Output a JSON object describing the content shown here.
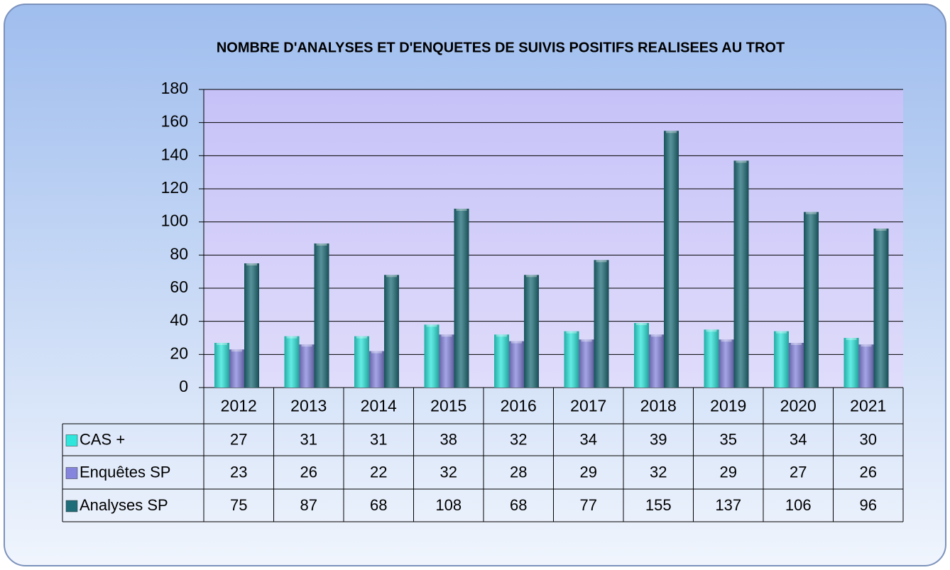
{
  "chart_data": {
    "type": "bar",
    "title": "NOMBRE D'ANALYSES ET D'ENQUETES DE SUIVIS POSITIFS REALISEES AU TROT",
    "categories": [
      "2012",
      "2013",
      "2014",
      "2015",
      "2016",
      "2017",
      "2018",
      "2019",
      "2020",
      "2021"
    ],
    "series": [
      {
        "name": "CAS +",
        "color": "#2ee6dc",
        "values": [
          27,
          31,
          31,
          38,
          32,
          34,
          39,
          35,
          34,
          30
        ]
      },
      {
        "name": "Enquêtes SP",
        "color": "#8585de",
        "values": [
          23,
          26,
          22,
          32,
          28,
          29,
          32,
          29,
          27,
          26
        ]
      },
      {
        "name": "Analyses SP",
        "color": "#1f6d78",
        "values": [
          75,
          87,
          68,
          108,
          68,
          77,
          155,
          137,
          106,
          96
        ]
      }
    ],
    "ylim": [
      0,
      180
    ],
    "yticks": [
      0,
      20,
      40,
      60,
      80,
      100,
      120,
      140,
      160,
      180
    ],
    "grid": true
  }
}
